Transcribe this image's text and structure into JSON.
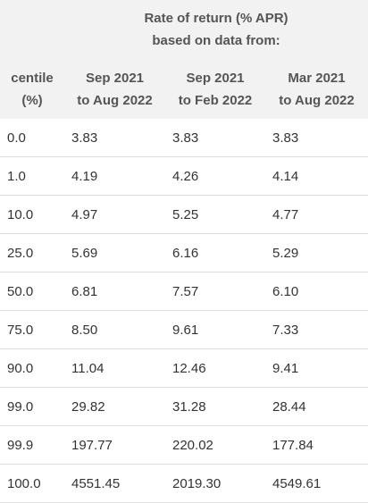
{
  "table": {
    "header": {
      "group_title": [
        "Rate of return (% APR)",
        "based on data from:"
      ],
      "columns": [
        [
          "centile",
          "(%)"
        ],
        [
          "Sep 2021",
          "to Aug 2022"
        ],
        [
          "Sep 2021",
          "to Feb 2022"
        ],
        [
          "Mar 2021",
          "to Aug 2022"
        ]
      ]
    },
    "rows": [
      [
        "0.0",
        "3.83",
        "3.83",
        "3.83"
      ],
      [
        "1.0",
        "4.19",
        "4.26",
        "4.14"
      ],
      [
        "10.0",
        "4.97",
        "5.25",
        "4.77"
      ],
      [
        "25.0",
        "5.69",
        "6.16",
        "5.29"
      ],
      [
        "50.0",
        "6.81",
        "7.57",
        "6.10"
      ],
      [
        "75.0",
        "8.50",
        "9.61",
        "7.33"
      ],
      [
        "90.0",
        "11.04",
        "12.46",
        "9.41"
      ],
      [
        "99.0",
        "29.82",
        "31.28",
        "28.44"
      ],
      [
        "99.9",
        "197.77",
        "220.02",
        "177.84"
      ],
      [
        "100.0",
        "4551.45",
        "2019.30",
        "4549.61"
      ]
    ]
  }
}
